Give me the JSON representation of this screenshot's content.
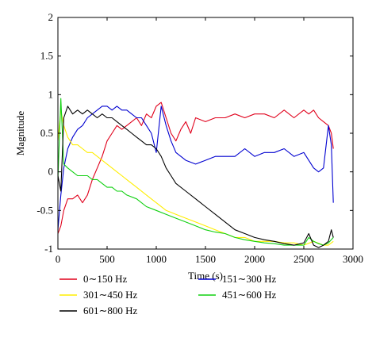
{
  "chart_data": {
    "type": "line",
    "xlabel": "Time (s)",
    "ylabel": "Magnitude",
    "xlim": [
      0,
      3000
    ],
    "ylim": [
      -1,
      2
    ],
    "xticks": [
      0,
      500,
      1000,
      1500,
      2000,
      2500,
      3000
    ],
    "yticks": [
      -1,
      -0.5,
      0,
      0.5,
      1,
      1.5,
      2
    ],
    "xtick_labels": [
      "0",
      "500",
      "1000",
      "1500",
      "2000",
      "2500",
      "3000"
    ],
    "ytick_labels": [
      "-1",
      "-0.5",
      "0",
      "0.5",
      "1",
      "1.5",
      "2"
    ],
    "grid": false,
    "legend_position": "below",
    "series": [
      {
        "name": "0∼150 Hz",
        "color": "#e0001b",
        "x": [
          0,
          30,
          60,
          100,
          150,
          200,
          250,
          300,
          350,
          400,
          450,
          500,
          550,
          600,
          650,
          700,
          750,
          800,
          850,
          900,
          950,
          1000,
          1050,
          1100,
          1150,
          1200,
          1250,
          1300,
          1350,
          1400,
          1500,
          1600,
          1700,
          1800,
          1900,
          2000,
          2100,
          2200,
          2300,
          2400,
          2500,
          2550,
          2600,
          2650,
          2700,
          2750,
          2780,
          2800
        ],
        "y": [
          -0.8,
          -0.7,
          -0.5,
          -0.35,
          -0.35,
          -0.3,
          -0.4,
          -0.3,
          -0.1,
          0.05,
          0.2,
          0.4,
          0.5,
          0.6,
          0.55,
          0.6,
          0.65,
          0.7,
          0.6,
          0.75,
          0.7,
          0.85,
          0.9,
          0.7,
          0.5,
          0.4,
          0.55,
          0.65,
          0.5,
          0.7,
          0.65,
          0.7,
          0.7,
          0.75,
          0.7,
          0.75,
          0.75,
          0.7,
          0.8,
          0.7,
          0.8,
          0.75,
          0.8,
          0.7,
          0.65,
          0.6,
          0.5,
          0.3
        ]
      },
      {
        "name": "151∼300 Hz",
        "color": "#0000d0",
        "x": [
          0,
          30,
          60,
          100,
          150,
          200,
          250,
          300,
          350,
          400,
          450,
          500,
          550,
          600,
          650,
          700,
          750,
          800,
          850,
          900,
          950,
          1000,
          1050,
          1100,
          1150,
          1200,
          1300,
          1400,
          1500,
          1600,
          1700,
          1800,
          1900,
          2000,
          2100,
          2200,
          2300,
          2400,
          2500,
          2550,
          2600,
          2650,
          2700,
          2750,
          2780,
          2800
        ],
        "y": [
          -0.75,
          -0.3,
          0.05,
          0.3,
          0.45,
          0.55,
          0.6,
          0.7,
          0.75,
          0.8,
          0.85,
          0.85,
          0.8,
          0.85,
          0.8,
          0.8,
          0.75,
          0.7,
          0.7,
          0.6,
          0.5,
          0.25,
          0.85,
          0.6,
          0.4,
          0.25,
          0.15,
          0.1,
          0.15,
          0.2,
          0.2,
          0.2,
          0.3,
          0.2,
          0.25,
          0.25,
          0.3,
          0.2,
          0.25,
          0.15,
          0.05,
          0.0,
          0.05,
          0.6,
          0.35,
          -0.4
        ]
      },
      {
        "name": "301∼450 Hz",
        "color": "#ffee00",
        "x": [
          0,
          30,
          60,
          100,
          150,
          200,
          250,
          300,
          350,
          400,
          450,
          500,
          550,
          600,
          650,
          700,
          800,
          900,
          1000,
          1100,
          1200,
          1300,
          1400,
          1500,
          1600,
          1700,
          1800,
          1900,
          2000,
          2100,
          2200,
          2300,
          2400,
          2500,
          2600,
          2700,
          2750,
          2800
        ],
        "y": [
          0.4,
          0.8,
          0.6,
          0.45,
          0.35,
          0.35,
          0.3,
          0.25,
          0.25,
          0.2,
          0.15,
          0.1,
          0.05,
          0.0,
          -0.05,
          -0.1,
          -0.2,
          -0.3,
          -0.4,
          -0.5,
          -0.55,
          -0.6,
          -0.65,
          -0.7,
          -0.75,
          -0.8,
          -0.85,
          -0.85,
          -0.9,
          -0.9,
          -0.9,
          -0.92,
          -0.92,
          -0.95,
          -0.9,
          -0.95,
          -0.95,
          -0.9
        ]
      },
      {
        "name": "451∼600 Hz",
        "color": "#10d010",
        "x": [
          0,
          30,
          60,
          100,
          150,
          200,
          250,
          300,
          350,
          400,
          450,
          500,
          550,
          600,
          650,
          700,
          800,
          900,
          1000,
          1100,
          1200,
          1300,
          1400,
          1500,
          1600,
          1700,
          1800,
          1900,
          2000,
          2100,
          2200,
          2300,
          2400,
          2500,
          2550,
          2600,
          2650,
          2700,
          2750,
          2800
        ],
        "y": [
          -0.1,
          0.95,
          0.1,
          0.05,
          0.0,
          -0.05,
          -0.05,
          -0.05,
          -0.1,
          -0.1,
          -0.15,
          -0.2,
          -0.2,
          -0.25,
          -0.25,
          -0.3,
          -0.35,
          -0.45,
          -0.5,
          -0.55,
          -0.6,
          -0.65,
          -0.7,
          -0.75,
          -0.78,
          -0.8,
          -0.85,
          -0.88,
          -0.9,
          -0.92,
          -0.93,
          -0.95,
          -0.95,
          -0.95,
          -0.85,
          -0.9,
          -0.93,
          -0.95,
          -0.92,
          -0.85
        ]
      },
      {
        "name": "601∼800 Hz",
        "color": "#000000",
        "x": [
          0,
          30,
          60,
          100,
          150,
          200,
          250,
          300,
          350,
          400,
          450,
          500,
          550,
          600,
          650,
          700,
          750,
          800,
          850,
          900,
          950,
          1000,
          1050,
          1100,
          1150,
          1200,
          1300,
          1400,
          1500,
          1600,
          1700,
          1800,
          1900,
          2000,
          2100,
          2200,
          2300,
          2400,
          2500,
          2550,
          2600,
          2650,
          2700,
          2750,
          2780,
          2800
        ],
        "y": [
          -0.05,
          -0.25,
          0.7,
          0.85,
          0.75,
          0.8,
          0.75,
          0.8,
          0.75,
          0.7,
          0.75,
          0.7,
          0.7,
          0.65,
          0.6,
          0.55,
          0.5,
          0.45,
          0.4,
          0.35,
          0.35,
          0.3,
          0.2,
          0.05,
          -0.05,
          -0.15,
          -0.25,
          -0.35,
          -0.45,
          -0.55,
          -0.65,
          -0.75,
          -0.8,
          -0.85,
          -0.88,
          -0.9,
          -0.93,
          -0.95,
          -0.92,
          -0.8,
          -0.95,
          -0.98,
          -0.95,
          -0.9,
          -0.75,
          -0.85
        ]
      }
    ]
  }
}
